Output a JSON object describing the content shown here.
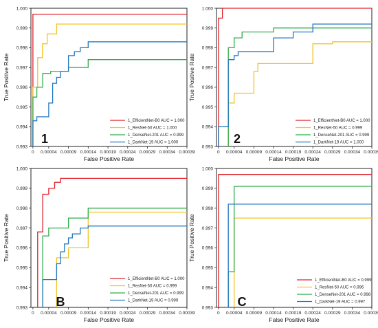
{
  "chart_data": [
    {
      "type": "line",
      "panel_label": "1",
      "xlabel": "False Positive Rate",
      "ylabel": "True Positive Rate",
      "xticks": [
        "0",
        "0.00004",
        "0.00009",
        "0.00014",
        "0.00019",
        "0.00024",
        "0.00029",
        "0.00034",
        "0.00039"
      ],
      "yticks": [
        "0.993",
        "0.994",
        "0.995",
        "0.996",
        "0.997",
        "0.998",
        "0.999",
        "1.000"
      ],
      "xlim": [
        -5e-06,
        0.00039
      ],
      "ylim": [
        0.993,
        1.0
      ],
      "legend_position": "bottom-right",
      "series": [
        {
          "name": "1_EfficientNet-B0 AUC = 1.000",
          "color": "#e0202a",
          "x": [
            0,
            0,
            0.00039
          ],
          "y": [
            0.993,
            0.9997,
            0.9997
          ]
        },
        {
          "name": "1_ResNet-50 AUC = 1.000",
          "color": "#f5c122",
          "x": [
            0,
            0,
            1.2e-05,
            1.2e-05,
            2.4e-05,
            2.4e-05,
            3.6e-05,
            3.6e-05,
            6e-05,
            6e-05,
            0.00039
          ],
          "y": [
            0.993,
            0.996,
            0.996,
            0.9975,
            0.9975,
            0.9982,
            0.9982,
            0.9987,
            0.9987,
            0.9992,
            0.9992
          ]
        },
        {
          "name": "1_DenseNet-201 AUC = 0.999",
          "color": "#2eac4a",
          "x": [
            0,
            0,
            1e-05,
            1e-05,
            2.5e-05,
            2.5e-05,
            4.5e-05,
            4.5e-05,
            9e-05,
            9e-05,
            0.00014,
            0.00014,
            0.00039
          ],
          "y": [
            0.993,
            0.9955,
            0.9955,
            0.996,
            0.996,
            0.9967,
            0.9967,
            0.9968,
            0.9968,
            0.997,
            0.997,
            0.9974,
            0.9974
          ]
        },
        {
          "name": "1_DarkNet-19 AUC = 1.000",
          "color": "#2377c0",
          "x": [
            0,
            0,
            1e-05,
            1e-05,
            4e-05,
            4e-05,
            5e-05,
            5e-05,
            6e-05,
            6e-05,
            7e-05,
            7e-05,
            9e-05,
            9e-05,
            0.000105,
            0.000105,
            0.00012,
            0.00012,
            0.00014,
            0.00014,
            0.00039
          ],
          "y": [
            0.993,
            0.9943,
            0.9943,
            0.9945,
            0.9945,
            0.9952,
            0.9952,
            0.9962,
            0.9962,
            0.9965,
            0.9965,
            0.9968,
            0.9968,
            0.9976,
            0.9976,
            0.9978,
            0.9978,
            0.998,
            0.998,
            0.9983,
            0.9983
          ]
        }
      ]
    },
    {
      "type": "line",
      "panel_label": "2",
      "xlabel": "False Positive Rate",
      "ylabel": "True Positive Rate",
      "xticks": [
        "0",
        "0.00004",
        "0.00009",
        "0.00014",
        "0.00019",
        "0.00024",
        "0.00029",
        "0.00034",
        "0.00039"
      ],
      "yticks": [
        "0.993",
        "0.994",
        "0.995",
        "0.996",
        "0.997",
        "0.998",
        "0.999",
        "1.000"
      ],
      "xlim": [
        -5e-06,
        0.00039
      ],
      "ylim": [
        0.993,
        1.0
      ],
      "legend_position": "bottom-right",
      "series": [
        {
          "name": "1_EfficientNet-B0 AUC = 1.000",
          "color": "#e0202a",
          "x": [
            0,
            0,
            1e-05,
            1e-05,
            0.00039
          ],
          "y": [
            0.993,
            0.9995,
            0.9995,
            1.0,
            1.0
          ]
        },
        {
          "name": "1_ResNet-50 AUC = 0.999",
          "color": "#f5c122",
          "x": [
            2.5e-05,
            2.5e-05,
            4e-05,
            4e-05,
            9e-05,
            9e-05,
            0.0001,
            0.0001,
            0.00014,
            0.00014,
            0.00024,
            0.00024,
            0.00029,
            0.00029,
            0.00039
          ],
          "y": [
            0.993,
            0.9952,
            0.9952,
            0.9957,
            0.9957,
            0.9968,
            0.9968,
            0.9972,
            0.9972,
            0.9972,
            0.9972,
            0.9982,
            0.9982,
            0.9983,
            0.9983
          ]
        },
        {
          "name": "1_DenseNet-201 AUC = 0.999",
          "color": "#2eac4a",
          "x": [
            2.5e-05,
            2.5e-05,
            4e-05,
            4e-05,
            6e-05,
            6e-05,
            9e-05,
            9e-05,
            0.00014,
            0.00014,
            0.00039
          ],
          "y": [
            0.993,
            0.998,
            0.998,
            0.9985,
            0.9985,
            0.9988,
            0.9988,
            0.9988,
            0.9988,
            0.999,
            0.999
          ]
        },
        {
          "name": "1_DarkNet-19 AUC = 1.000",
          "color": "#2377c0",
          "x": [
            0,
            0,
            2.5e-05,
            2.5e-05,
            4e-05,
            4e-05,
            5e-05,
            5e-05,
            0.00014,
            0.00014,
            0.00019,
            0.00019,
            0.00024,
            0.00024,
            0.00039
          ],
          "y": [
            0.993,
            0.994,
            0.994,
            0.9974,
            0.9974,
            0.9976,
            0.9976,
            0.9978,
            0.9978,
            0.9985,
            0.9985,
            0.9988,
            0.9988,
            0.9992,
            0.9992
          ]
        }
      ]
    },
    {
      "type": "line",
      "panel_label": "B",
      "xlabel": "False Positive Rate",
      "ylabel": "True Positive Rate",
      "xticks": [
        "0",
        "0.00004",
        "0.00009",
        "0.00014",
        "0.00019",
        "0.00024",
        "0.00029",
        "0.00034",
        "0.00039"
      ],
      "yticks": [
        "0.993",
        "0.994",
        "0.995",
        "0.996",
        "0.997",
        "0.998",
        "0.999",
        "1.000"
      ],
      "xlim": [
        -5e-06,
        0.00039
      ],
      "ylim": [
        0.993,
        1.0
      ],
      "legend_position": "bottom-right",
      "series": [
        {
          "name": "1_EfficientNet-B0 AUC = 1.000",
          "color": "#e0202a",
          "x": [
            1.2e-05,
            1.2e-05,
            2.5e-05,
            2.5e-05,
            4e-05,
            4e-05,
            5.5e-05,
            5.5e-05,
            7e-05,
            7e-05,
            0.00039
          ],
          "y": [
            0.993,
            0.9968,
            0.9968,
            0.9987,
            0.9987,
            0.999,
            0.999,
            0.9993,
            0.9993,
            0.9995,
            0.9995
          ]
        },
        {
          "name": "1_ResNet-50 AUC = 0.999",
          "color": "#f5c122",
          "x": [
            6e-05,
            6e-05,
            9e-05,
            9e-05,
            0.00014,
            0.00014,
            0.00039
          ],
          "y": [
            0.993,
            0.9955,
            0.9955,
            0.996,
            0.996,
            0.9978,
            0.9978
          ]
        },
        {
          "name": "1_DenseNet-201 AUC = 0.999",
          "color": "#2eac4a",
          "x": [
            2.5e-05,
            2.5e-05,
            4e-05,
            4e-05,
            9e-05,
            9e-05,
            0.00014,
            0.00014,
            0.00039
          ],
          "y": [
            0.993,
            0.9966,
            0.9966,
            0.997,
            0.997,
            0.9975,
            0.9975,
            0.998,
            0.998
          ]
        },
        {
          "name": "1_DarkNet-19 AUC = 0.999",
          "color": "#2377c0",
          "x": [
            2.5e-05,
            2.5e-05,
            6e-05,
            6e-05,
            7e-05,
            7e-05,
            8e-05,
            8e-05,
            9e-05,
            9e-05,
            0.0001,
            0.0001,
            0.00012,
            0.00012,
            0.00014,
            0.00014,
            0.00039
          ],
          "y": [
            0.993,
            0.9944,
            0.9944,
            0.9952,
            0.9952,
            0.9958,
            0.9958,
            0.9962,
            0.9962,
            0.9965,
            0.9965,
            0.9967,
            0.9967,
            0.997,
            0.997,
            0.9971,
            0.9971
          ]
        }
      ]
    },
    {
      "type": "line",
      "panel_label": "C",
      "xlabel": "False Positive Rate",
      "ylabel": "True Positive Rate",
      "xticks": [
        "0",
        "0.00004",
        "0.00009",
        "0.00014",
        "0.00019",
        "0.00024",
        "0.00029",
        "0.00034",
        "0.00039"
      ],
      "yticks": [
        "0.993",
        "0.994",
        "0.995",
        "0.996",
        "0.997",
        "0.998",
        "0.999",
        "1.000"
      ],
      "xlim": [
        -5e-06,
        0.00039
      ],
      "ylim": [
        0.993,
        1.0
      ],
      "legend_position": "bottom-right",
      "series": [
        {
          "name": "1_EfficientNet-B0 AUC = 0.999",
          "color": "#e0202a",
          "x": [
            0,
            0,
            0.00039
          ],
          "y": [
            0.993,
            0.9997,
            0.9997
          ]
        },
        {
          "name": "1_ResNet-50 AUC = 0.996",
          "color": "#f5c122",
          "x": [
            4e-05,
            4e-05,
            0.00039
          ],
          "y": [
            0.993,
            0.9975,
            0.9975
          ]
        },
        {
          "name": "1_DenseNet-201 AUC = 0.998",
          "color": "#2eac4a",
          "x": [
            2.5e-05,
            2.5e-05,
            4e-05,
            4e-05,
            0.00039
          ],
          "y": [
            0.993,
            0.9948,
            0.9948,
            0.9991,
            0.9991
          ]
        },
        {
          "name": "1_DarkNet-19 AUC = 0.997",
          "color": "#2377c0",
          "x": [
            2.5e-05,
            2.5e-05,
            0.00039
          ],
          "y": [
            0.993,
            0.9982,
            0.9982
          ]
        }
      ]
    }
  ]
}
